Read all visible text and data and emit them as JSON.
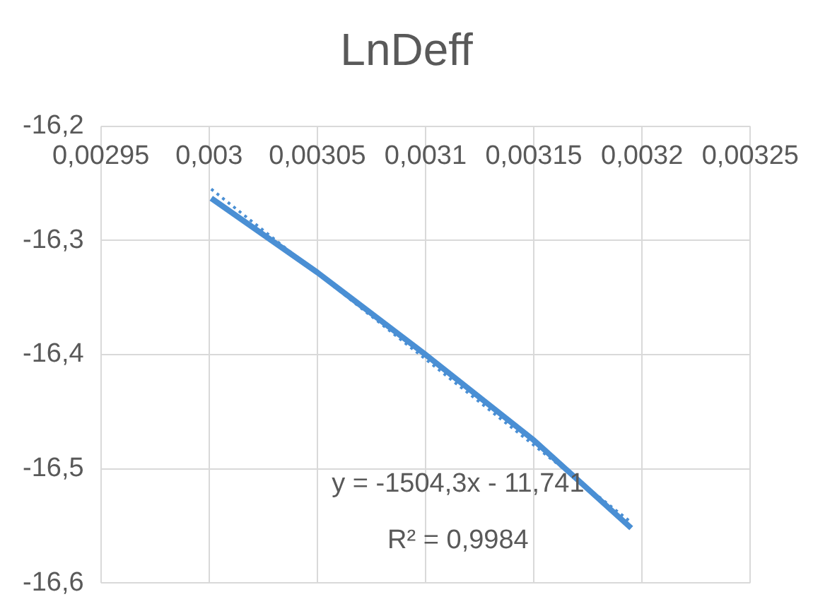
{
  "chart_data": {
    "type": "line",
    "title": "LnDeff",
    "series": [
      {
        "color": "#4a8fd4",
        "x": [
          0.003001,
          0.00305,
          0.0031,
          0.00315,
          0.003195
        ],
        "values": [
          -16.263,
          -16.328,
          -16.4,
          -16.475,
          -16.552
        ]
      },
      {
        "type": "line",
        "color": "#4a8fd4",
        "line_style": "dotted",
        "x": [
          0.003001,
          0.003195
        ],
        "values": [
          -16.255,
          -16.547
        ]
      }
    ],
    "xlim": [
      0.00295,
      0.00325
    ],
    "xticks": [
      {
        "value": 0.00295,
        "label": "0,00295"
      },
      {
        "value": 0.003,
        "label": "0,003"
      },
      {
        "value": 0.00305,
        "label": "0,00305"
      },
      {
        "value": 0.0031,
        "label": "0,0031"
      },
      {
        "value": 0.00315,
        "label": "0,00315"
      },
      {
        "value": 0.0032,
        "label": "0,0032"
      },
      {
        "value": 0.00325,
        "label": "0,00325"
      }
    ],
    "ylim": [
      -16.6,
      -16.2
    ],
    "yticks": [
      {
        "value": -16.6,
        "label": "-16,6"
      },
      {
        "value": -16.5,
        "label": "-16,5"
      },
      {
        "value": -16.4,
        "label": "-16,4"
      },
      {
        "value": -16.3,
        "label": "-16,3"
      },
      {
        "value": -16.2,
        "label": "-16,2"
      }
    ],
    "annotations": [
      "y = -1504,3x - 11,741",
      "R² = 0,9984"
    ],
    "grid": true,
    "legend": false,
    "marker": "none",
    "line_style": "solid"
  }
}
